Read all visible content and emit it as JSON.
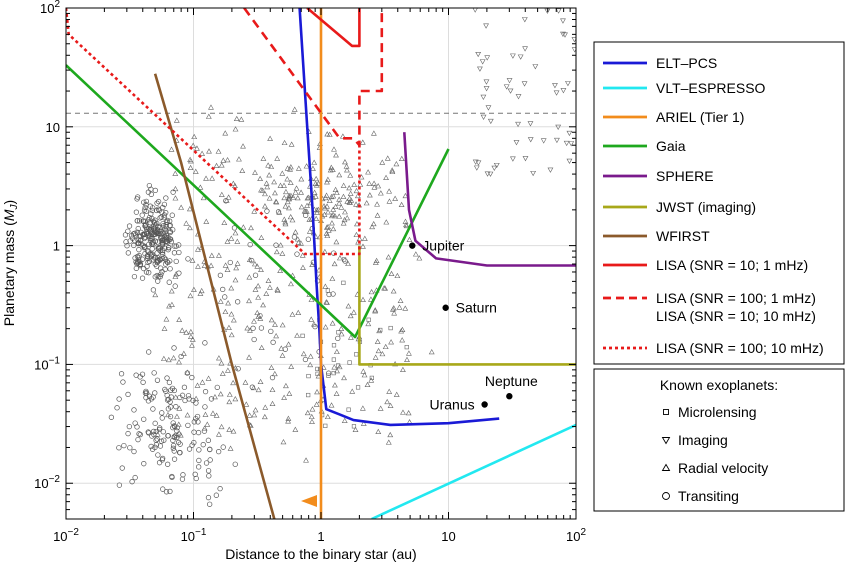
{
  "chart_data": {
    "type": "line",
    "xlabel": "Distance to the binary star (au)",
    "ylabel_prefix": "Planetary mass (",
    "ylabel_unit": "M",
    "ylabel_sub": "J",
    "ylabel_suffix": ")",
    "xscale": "log",
    "yscale": "log",
    "xlim": [
      0.01,
      100
    ],
    "ylim": [
      0.005,
      100
    ],
    "grid": true,
    "x_ticks": [
      {
        "value": 0.01,
        "base": "10",
        "exp": "−2"
      },
      {
        "value": 0.1,
        "base": "10",
        "exp": "−1"
      },
      {
        "value": 1,
        "text": "1"
      },
      {
        "value": 10,
        "text": "10"
      },
      {
        "value": 100,
        "base": "10",
        "exp": "2"
      }
    ],
    "y_ticks": [
      {
        "value": 0.01,
        "base": "10",
        "exp": "−2"
      },
      {
        "value": 0.1,
        "base": "10",
        "exp": "−1"
      },
      {
        "value": 1,
        "text": "1"
      },
      {
        "value": 10,
        "text": "10"
      },
      {
        "value": 100,
        "base": "10",
        "exp": "2"
      }
    ],
    "reference_line": {
      "y": 13,
      "style": "dashed",
      "color": "#777777"
    },
    "series": [
      {
        "name": "ELT–PCS",
        "color": "#1a1ad6",
        "style": "solid",
        "x": [
          0.68,
          0.78,
          0.86,
          0.92,
          0.97,
          1.0,
          1.1,
          1.4,
          1.8,
          3.5,
          10,
          25
        ],
        "y": [
          100,
          10,
          2,
          0.5,
          0.2,
          0.1,
          0.042,
          0.038,
          0.034,
          0.031,
          0.032,
          0.035
        ]
      },
      {
        "name": "VLT–ESPRESSO",
        "color": "#22e8f0",
        "style": "solid",
        "x": [
          2.5,
          100
        ],
        "y": [
          0.005,
          0.031
        ]
      },
      {
        "name": "ARIEL (Tier 1)",
        "color": "#f28c1c",
        "style": "solid",
        "x": [
          1,
          1
        ],
        "y": [
          0.005,
          100
        ]
      },
      {
        "name": "Gaia",
        "color": "#1ea81e",
        "style": "solid",
        "x": [
          0.01,
          1.85,
          10
        ],
        "y": [
          33,
          0.17,
          6.5
        ]
      },
      {
        "name": "SPHERE",
        "color": "#7a1a8c",
        "style": "solid",
        "x": [
          4.5,
          4.9,
          5.5,
          8,
          20,
          100
        ],
        "y": [
          9,
          2,
          1.1,
          0.78,
          0.68,
          0.68
        ]
      },
      {
        "name": "JWST (imaging)",
        "color": "#a8a81a",
        "style": "solid",
        "x": [
          2,
          2,
          100
        ],
        "y": [
          1,
          0.1,
          0.1
        ]
      },
      {
        "name": "WFIRST",
        "color": "#8b5a2b",
        "style": "solid",
        "x": [
          0.05,
          0.08,
          0.2,
          0.43
        ],
        "y": [
          28,
          5,
          0.1,
          0.005
        ]
      },
      {
        "name": "LISA (SNR = 10; 1 mHz)",
        "color": "#e81a1a",
        "style": "solid",
        "x": [
          0.78,
          1.75,
          2,
          2
        ],
        "y": [
          100,
          48,
          48,
          100
        ]
      },
      {
        "name": "LISA (SNR = 100; 1 mHz)",
        "name_line2": "LISA (SNR = 10; 10 mHz)",
        "color": "#e81a1a",
        "style": "dashed",
        "x": [
          0.25,
          1.4,
          1.8,
          2,
          2,
          3,
          3
        ],
        "y": [
          100,
          8,
          8,
          7,
          20,
          20,
          100
        ]
      },
      {
        "name": "LISA (SNR = 100; 10 mHz)",
        "color": "#e81a1a",
        "style": "dotted",
        "x": [
          0.01,
          0.0105,
          0.75,
          2,
          2
        ],
        "y": [
          100,
          60,
          0.85,
          0.85,
          7
        ]
      }
    ],
    "solar_system": [
      {
        "name": "Jupiter",
        "x": 5.2,
        "y": 1.0,
        "label_pos": "right"
      },
      {
        "name": "Saturn",
        "x": 9.5,
        "y": 0.3,
        "label_pos": "right"
      },
      {
        "name": "Uranus",
        "x": 19.2,
        "y": 0.046,
        "label_pos": "left"
      },
      {
        "name": "Neptune",
        "x": 30,
        "y": 0.054,
        "label_pos": "above"
      }
    ],
    "exoplanet_legend": {
      "title": "Known exoplanets:",
      "items": [
        {
          "name": "Microlensing",
          "marker": "square"
        },
        {
          "name": "Imaging",
          "marker": "triangle-down"
        },
        {
          "name": "Radial velocity",
          "marker": "triangle-up"
        },
        {
          "name": "Transiting",
          "marker": "circle"
        }
      ]
    },
    "exoplanets_note": "Background scatter of known exoplanets (generated pseudo-randomly to match density)"
  }
}
